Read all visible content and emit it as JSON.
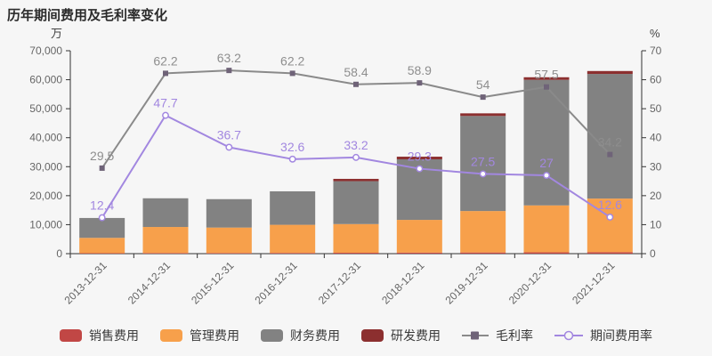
{
  "title": "历年期间费用及毛利率变化",
  "left_axis": {
    "unit": "万",
    "min": 0,
    "max": 70000,
    "ticks": [
      "0",
      "10,000",
      "20,000",
      "30,000",
      "40,000",
      "50,000",
      "60,000",
      "70,000"
    ]
  },
  "right_axis": {
    "unit": "%",
    "min": 0,
    "max": 70,
    "ticks": [
      "0",
      "10",
      "20",
      "30",
      "40",
      "50",
      "60",
      "70"
    ]
  },
  "chart_data": {
    "type": "bar",
    "subtype": "stacked-bar-with-lines",
    "grid": false,
    "legend_position": "bottom",
    "categories": [
      "2013-12-31",
      "2014-12-31",
      "2015-12-31",
      "2016-12-31",
      "2017-12-31",
      "2018-12-31",
      "2019-12-31",
      "2020-12-31",
      "2021-12-31"
    ],
    "series": [
      {
        "name": "销售费用",
        "type": "bar",
        "axis": "left",
        "color": "#c14745",
        "values": [
          150,
          200,
          200,
          250,
          300,
          350,
          400,
          450,
          500
        ]
      },
      {
        "name": "管理费用",
        "type": "bar",
        "axis": "left",
        "color": "#f7a04b",
        "values": [
          5300,
          9000,
          8800,
          9700,
          9900,
          11300,
          14300,
          16200,
          18500
        ]
      },
      {
        "name": "财务费用",
        "type": "bar",
        "axis": "left",
        "color": "#828282",
        "values": [
          6850,
          9900,
          9800,
          11550,
          14800,
          20900,
          32800,
          43300,
          43000
        ]
      },
      {
        "name": "研发费用",
        "type": "bar",
        "axis": "left",
        "color": "#8c2f2f",
        "values": [
          0,
          0,
          0,
          0,
          800,
          900,
          900,
          900,
          1000
        ]
      },
      {
        "name": "毛利率",
        "type": "line",
        "axis": "right",
        "color": "#8a8a8a",
        "marker": "square",
        "marker_color": "#6f6378",
        "label_color": "#8e8e8e",
        "values": [
          29.5,
          62.2,
          63.2,
          62.2,
          58.4,
          58.9,
          54,
          57.5,
          34.2
        ]
      },
      {
        "name": "期间费用率",
        "type": "line",
        "axis": "right",
        "color": "#a287e0",
        "marker": "circle-open",
        "marker_color": "#a287e0",
        "label_color": "#a287e0",
        "values": [
          12.4,
          47.7,
          36.7,
          32.6,
          33.2,
          29.3,
          27.5,
          27,
          12.6
        ]
      }
    ]
  },
  "colors": {
    "background": "#f6f6f6",
    "axis_line": "#333333",
    "tick_text": "#666666",
    "title_text": "#2b2b2b"
  }
}
